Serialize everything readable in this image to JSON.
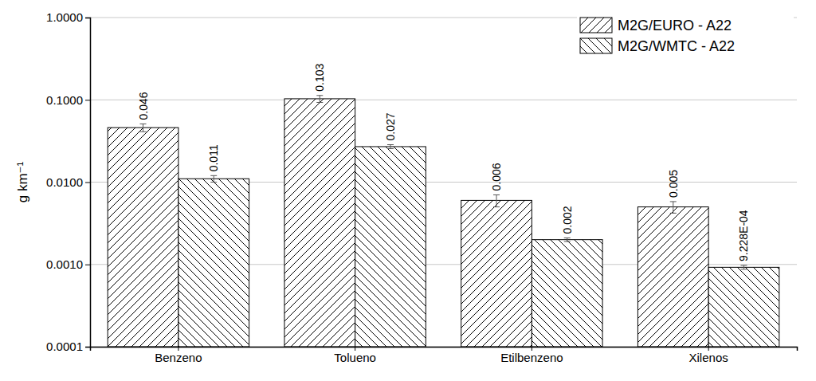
{
  "chart_data": {
    "type": "bar",
    "y_label": "g km⁻¹",
    "categories": [
      "Benzeno",
      "Tolueno",
      "Etilbenzeno",
      "Xilenos"
    ],
    "series": [
      {
        "name": "M2G/EURO - A22",
        "color": "#000000",
        "values": [
          0.046,
          0.103,
          0.006,
          0.005
        ],
        "errors": [
          0.005,
          0.01,
          0.001,
          0.0008
        ]
      },
      {
        "name": "M2G/WMTC - A22",
        "color": "#000000",
        "values": [
          0.011,
          0.027,
          0.002,
          0.0009228
        ],
        "value_labels": [
          "0.011",
          "0.027",
          "0.002",
          "9.228E-04"
        ],
        "errors": [
          0.001,
          0.0015,
          0.0001,
          5e-05
        ]
      }
    ],
    "log": "y",
    "ylim": [
      0.0001,
      1
    ],
    "yticks": [
      {
        "value": 0.0001,
        "label": "0.0001"
      },
      {
        "value": 0.001,
        "label": "0.0010"
      },
      {
        "value": 0.01,
        "label": "0.0100"
      },
      {
        "value": 0.1,
        "label": "0.1000"
      },
      {
        "value": 1,
        "label": "1.0000"
      }
    ],
    "grid": true,
    "legend": "upper right",
    "data_labels": true
  }
}
